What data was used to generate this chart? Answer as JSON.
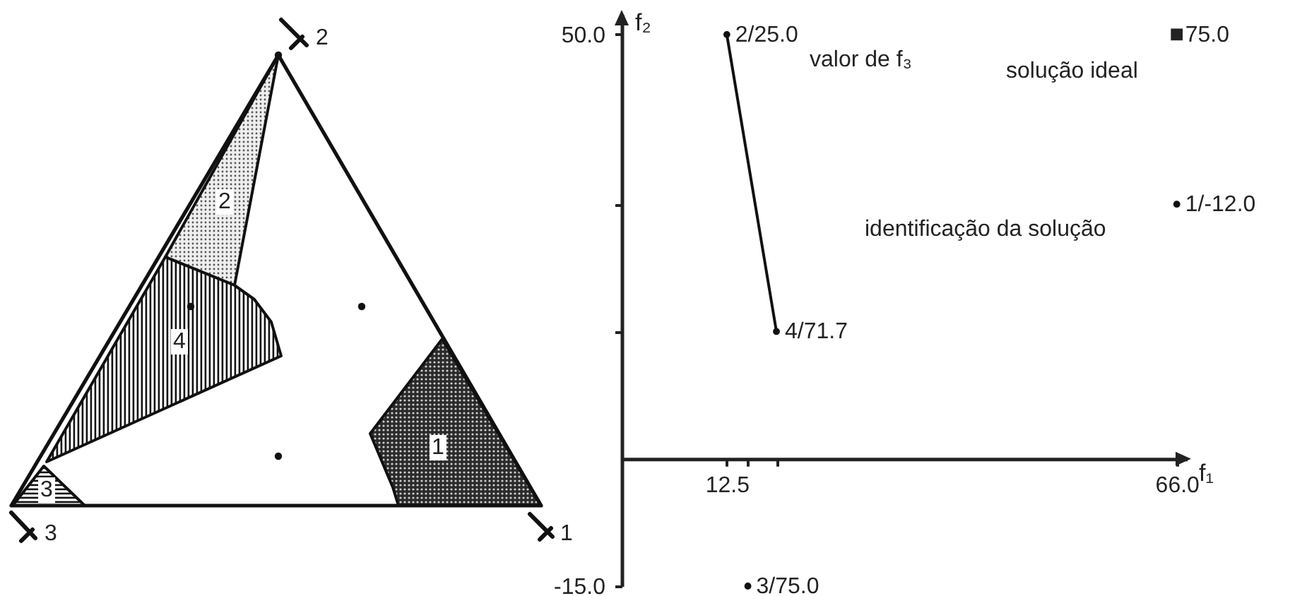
{
  "chart_data": [
    {
      "type": "other",
      "annotations": [
        "2",
        "2",
        "4",
        "1",
        "3",
        "3",
        "1"
      ]
    },
    {
      "type": "scatter",
      "xlabel": "f₁",
      "ylabel": "f₂",
      "xlim": [
        0,
        67.2
      ],
      "ylim": [
        -15,
        52.4
      ],
      "xticks": [
        12.5,
        {
          "value": 15,
          "label": null
        },
        {
          "value": 18.4,
          "label": null
        },
        {
          "value": 66,
          "label": "66.0"
        }
      ],
      "yticks": [
        {
          "value": -15,
          "label": "-15.0"
        },
        {
          "value": 15,
          "label": null
        },
        {
          "value": 30,
          "label": null
        },
        {
          "value": 50,
          "label": "50.0"
        }
      ],
      "grid": false,
      "series": [
        {
          "type": "line",
          "color": "#111111",
          "x": [
            12.5,
            18.4
          ],
          "values": [
            50,
            15
          ],
          "marker": "none"
        },
        {
          "color": "#111111",
          "x": [
            66,
            12.5,
            15,
            18.4
          ],
          "values": [
            30,
            50,
            -15,
            15
          ],
          "value_labels": [
            "1/-12.0",
            "2/25.0",
            "3/75.0",
            "4/71.7"
          ],
          "marker": "circle"
        },
        {
          "color": "#222222",
          "x": [
            66
          ],
          "values": [
            50
          ],
          "marker": "square"
        }
      ],
      "annotations": [
        "valor de f₃",
        "solução ideal",
        "identificação da solução",
        {
          "text": "75.0",
          "x": 66,
          "y": 50
        }
      ]
    }
  ]
}
